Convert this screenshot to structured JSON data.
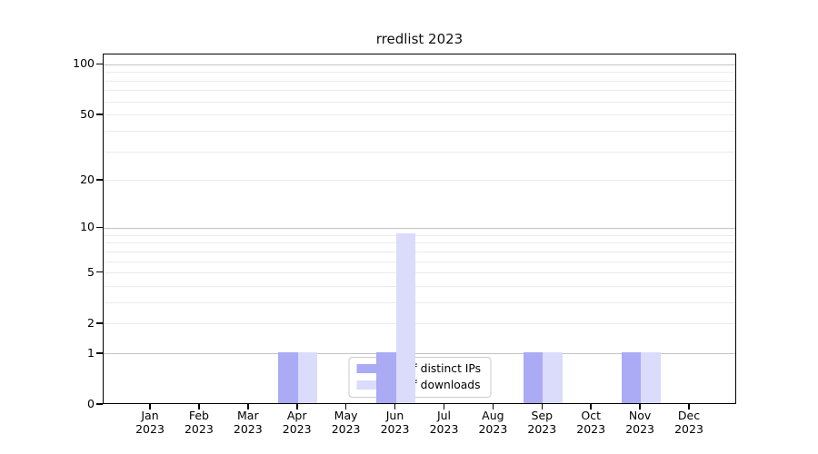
{
  "figure": {
    "title": "rredlist 2023"
  },
  "chart_data": {
    "type": "bar",
    "title": "rredlist 2023",
    "months": [
      "Jan",
      "Feb",
      "Mar",
      "Apr",
      "May",
      "Jun",
      "Jul",
      "Aug",
      "Sep",
      "Oct",
      "Nov",
      "Dec"
    ],
    "year": "2023",
    "series": [
      {
        "name": "Nb of distinct IPs",
        "color": "#aaaaf5",
        "values": [
          0,
          0,
          0,
          1,
          0,
          1,
          0,
          0,
          1,
          0,
          1,
          0
        ]
      },
      {
        "name": "Nb of downloads",
        "color": "#dbdbfb",
        "values": [
          0,
          0,
          0,
          1,
          0,
          9,
          0,
          0,
          1,
          0,
          1,
          0
        ]
      }
    ],
    "xlabel": "",
    "ylabel": "",
    "y_scale": "log1p",
    "ylim": [
      0,
      115
    ],
    "y_ticks": [
      0,
      1,
      2,
      5,
      10,
      20,
      50,
      100
    ],
    "grid": {
      "on": true,
      "major_values": [
        1,
        10,
        100
      ],
      "minor_values": [
        2,
        3,
        4,
        5,
        6,
        7,
        8,
        9,
        20,
        30,
        40,
        50,
        60,
        70,
        80,
        90
      ]
    },
    "legend_position": "lower center"
  },
  "colors": {
    "background": "#ffffff",
    "axis": "#000000",
    "grid_major": "#c3c3c3",
    "grid_minor": "#ebebeb",
    "bar_distinct_ips": "#aaaaf5",
    "bar_downloads": "#dbdbfb",
    "legend_border": "#cbcbcb",
    "title_text": "#111111"
  }
}
